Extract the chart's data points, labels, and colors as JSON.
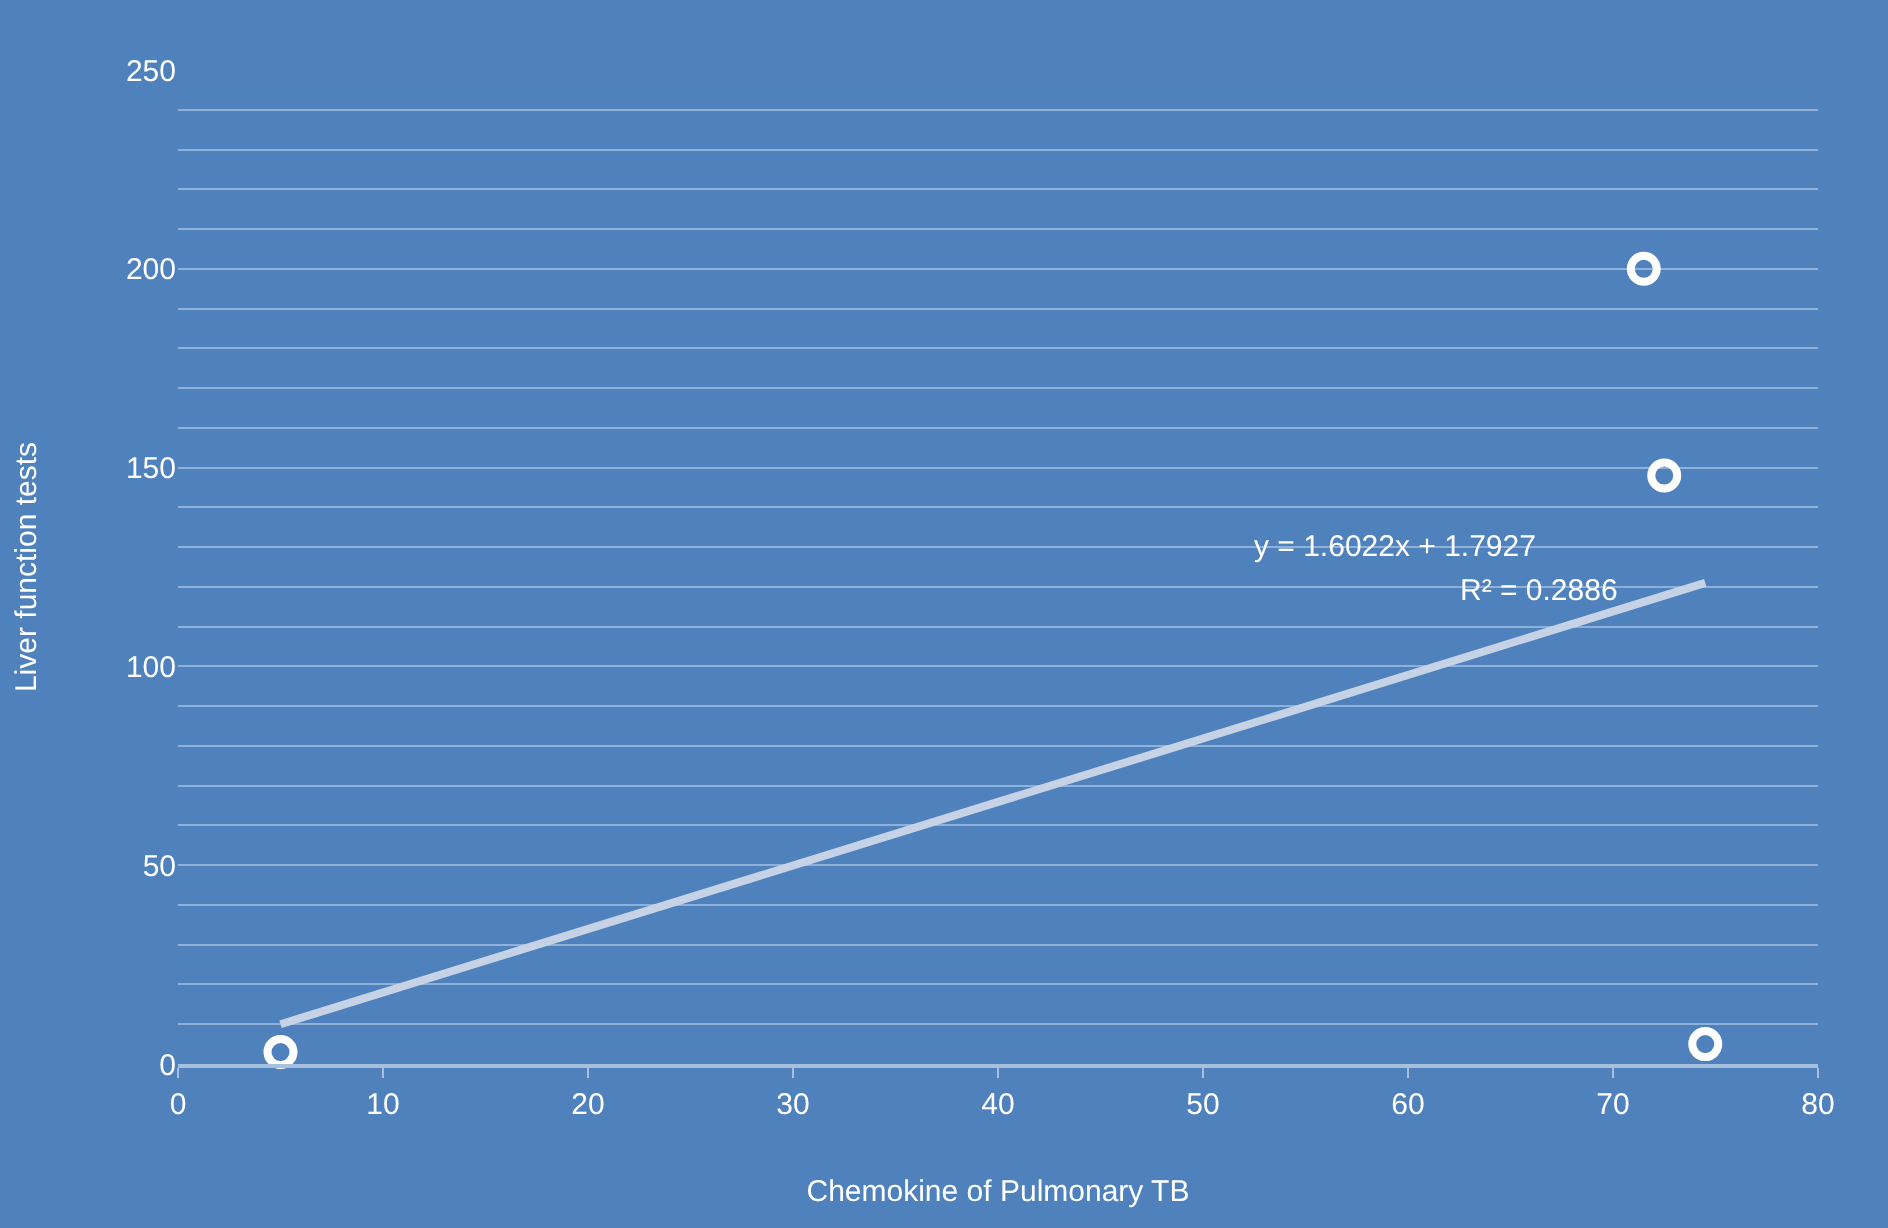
{
  "chart_data": {
    "type": "scatter",
    "xlabel": "Chemokine of Pulmonary TB",
    "ylabel": "Liver function tests",
    "series": [
      {
        "color": "#ffffff",
        "x": [
          5,
          71.5,
          72.5,
          74.5
        ],
        "values": [
          3,
          200,
          148,
          5
        ],
        "marker": "circle"
      },
      {
        "type": "line",
        "color": "#c6d3e6",
        "x": [
          5,
          74.5
        ],
        "values": [
          10,
          121
        ],
        "line_style": "solid"
      }
    ],
    "annotations": [
      "y = 1.6022x + 1.7927",
      "R² = 0.2886"
    ],
    "xlim": [
      0,
      80
    ],
    "xticks": [
      0,
      10,
      20,
      30,
      40,
      50,
      60,
      70,
      80
    ],
    "ylim": [
      0,
      250
    ],
    "yticks": [
      0,
      {
        "value": 10,
        "label": null
      },
      {
        "value": 20,
        "label": null
      },
      {
        "value": 30,
        "label": null
      },
      {
        "value": 40,
        "label": null
      },
      50,
      {
        "value": 60,
        "label": null
      },
      {
        "value": 70,
        "label": null
      },
      {
        "value": 80,
        "label": null
      },
      {
        "value": 90,
        "label": null
      },
      100,
      {
        "value": 110,
        "label": null
      },
      {
        "value": 120,
        "label": null
      },
      {
        "value": 130,
        "label": null
      },
      {
        "value": 140,
        "label": null
      },
      150,
      {
        "value": 160,
        "label": null
      },
      {
        "value": 170,
        "label": null
      },
      {
        "value": 180,
        "label": null
      },
      {
        "value": 190,
        "label": null
      },
      200,
      {
        "value": 210,
        "label": null
      },
      {
        "value": 220,
        "label": null
      },
      {
        "value": 230,
        "label": null
      },
      {
        "value": 240,
        "label": null
      },
      250
    ],
    "grid": "y",
    "legend": false
  }
}
